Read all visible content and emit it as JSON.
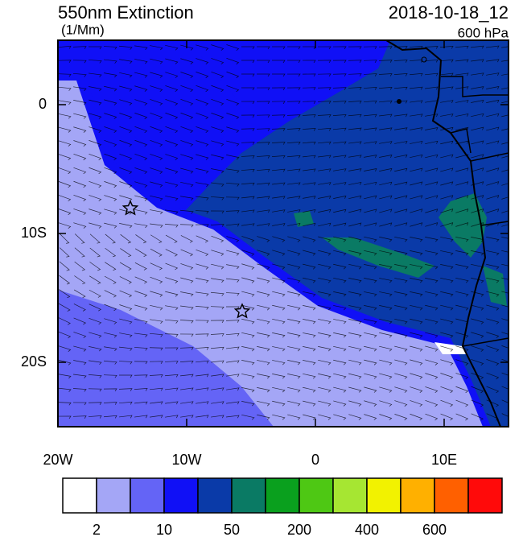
{
  "header": {
    "title": "550nm Extinction",
    "units": "(1/Mm)",
    "time": "2018-10-18_12",
    "level": "600 hPa"
  },
  "map": {
    "type": "map",
    "xlim": [
      -20,
      15
    ],
    "ylim": [
      -25,
      5
    ],
    "xticks": [
      {
        "value": -20,
        "label": "20W"
      },
      {
        "value": -10,
        "label": "10W"
      },
      0,
      {
        "value": 10,
        "label": "10E"
      }
    ],
    "yticks": [
      0,
      {
        "value": -10,
        "label": "10S"
      },
      {
        "value": -20,
        "label": "20S"
      }
    ]
  },
  "colorbar": {
    "colors": [
      "#ffffff",
      "#a4a6f6",
      "#6464f6",
      "#1010f6",
      "#0a3aa8",
      "#0a7a64",
      "#0aa01e",
      "#4ec814",
      "#a6e632",
      "#f2f200",
      "#ffb000",
      "#ff6000",
      "#ff0a0a"
    ],
    "labels": [
      2,
      10,
      50,
      200,
      400,
      600
    ]
  }
}
